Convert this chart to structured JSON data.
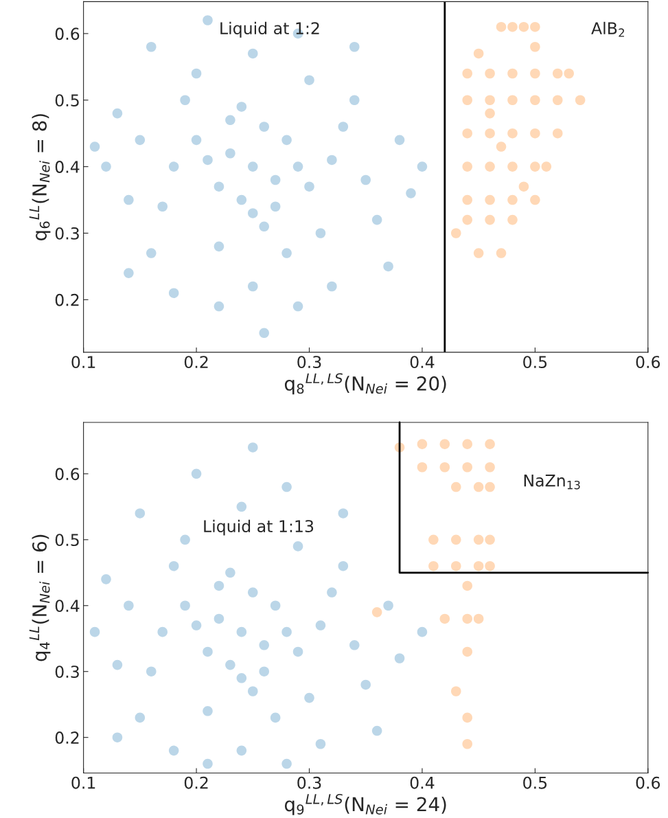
{
  "chart_data": [
    {
      "type": "scatter",
      "xlabel": "q$_{8}$$^{LL,LS}$(N$_{Nei}$ = 20)",
      "ylabel": "q$_{6}$$^{LL}$(N$_{Nei}$ = 8)",
      "xlim": [
        0.1,
        0.6
      ],
      "ylim": [
        0.121,
        0.648
      ],
      "xticks": [
        0.1,
        0.2,
        0.3,
        0.4,
        0.5,
        0.6
      ],
      "yticks": [
        0.2,
        0.3,
        0.4,
        0.5,
        0.6
      ],
      "grid": false,
      "legend": false,
      "marker": "circle",
      "annotations": [
        "Liquid at 1:2",
        "AlB$_{2}$"
      ],
      "ref_lines": [
        {
          "axis": "x",
          "value": 0.42,
          "color": "#000000"
        }
      ],
      "series": [
        {
          "color": "#1f77b4",
          "x": [
            0.25,
            0.23,
            0.27,
            0.22,
            0.28,
            0.24,
            0.26,
            0.21,
            0.29,
            0.25,
            0.23,
            0.27,
            0.2,
            0.3,
            0.24,
            0.26,
            0.18,
            0.32,
            0.17,
            0.33,
            0.19,
            0.31,
            0.22,
            0.28,
            0.2,
            0.3,
            0.15,
            0.35,
            0.14,
            0.36,
            0.25,
            0.25,
            0.16,
            0.34,
            0.13,
            0.38,
            0.12,
            0.39,
            0.21,
            0.29,
            0.22,
            0.29,
            0.14,
            0.37,
            0.16,
            0.34,
            0.26,
            0.4,
            0.11,
            0.18,
            0.32
          ],
          "values": [
            0.4,
            0.42,
            0.38,
            0.37,
            0.44,
            0.35,
            0.46,
            0.41,
            0.4,
            0.33,
            0.47,
            0.34,
            0.44,
            0.37,
            0.49,
            0.31,
            0.4,
            0.41,
            0.34,
            0.46,
            0.5,
            0.3,
            0.28,
            0.27,
            0.54,
            0.53,
            0.44,
            0.38,
            0.35,
            0.32,
            0.57,
            0.22,
            0.27,
            0.5,
            0.48,
            0.44,
            0.4,
            0.36,
            0.62,
            0.6,
            0.19,
            0.19,
            0.24,
            0.25,
            0.58,
            0.58,
            0.15,
            0.4,
            0.43,
            0.21,
            0.22
          ]
        },
        {
          "color": "#ff7f0e",
          "x": [
            0.47,
            0.48,
            0.49,
            0.5,
            0.44,
            0.46,
            0.48,
            0.5,
            0.52,
            0.53,
            0.44,
            0.46,
            0.48,
            0.5,
            0.52,
            0.54,
            0.44,
            0.46,
            0.48,
            0.5,
            0.52,
            0.44,
            0.46,
            0.48,
            0.5,
            0.51,
            0.44,
            0.46,
            0.48,
            0.5,
            0.44,
            0.46,
            0.48,
            0.45,
            0.47,
            0.45,
            0.47,
            0.46,
            0.49,
            0.43,
            0.5
          ],
          "values": [
            0.61,
            0.61,
            0.61,
            0.61,
            0.54,
            0.54,
            0.54,
            0.54,
            0.54,
            0.54,
            0.5,
            0.5,
            0.5,
            0.5,
            0.5,
            0.5,
            0.45,
            0.45,
            0.45,
            0.45,
            0.45,
            0.4,
            0.4,
            0.4,
            0.4,
            0.4,
            0.35,
            0.35,
            0.35,
            0.35,
            0.32,
            0.32,
            0.32,
            0.27,
            0.27,
            0.57,
            0.43,
            0.48,
            0.37,
            0.3,
            0.58
          ]
        }
      ]
    },
    {
      "type": "scatter",
      "xlabel": "q$_{9}$$^{LL,LS}$(N$_{Nei}$ = 24)",
      "ylabel": "q$_{4}$$^{LL}$(N$_{Nei}$ = 6)",
      "xlim": [
        0.1,
        0.6
      ],
      "ylim": [
        0.146,
        0.678
      ],
      "xticks": [
        0.1,
        0.2,
        0.3,
        0.4,
        0.5,
        0.6
      ],
      "yticks": [
        0.2,
        0.3,
        0.4,
        0.5,
        0.6
      ],
      "grid": false,
      "legend": false,
      "marker": "circle",
      "annotations": [
        "Liquid at 1:13",
        "NaZn$_{13}$"
      ],
      "series": [
        {
          "color": "#1f77b4",
          "x": [
            0.24,
            0.22,
            0.26,
            0.21,
            0.27,
            0.23,
            0.25,
            0.2,
            0.28,
            0.24,
            0.22,
            0.26,
            0.19,
            0.29,
            0.23,
            0.25,
            0.17,
            0.31,
            0.16,
            0.32,
            0.18,
            0.3,
            0.21,
            0.27,
            0.19,
            0.29,
            0.14,
            0.34,
            0.13,
            0.35,
            0.24,
            0.24,
            0.15,
            0.33,
            0.12,
            0.37,
            0.11,
            0.38,
            0.2,
            0.28,
            0.21,
            0.28,
            0.13,
            0.36,
            0.15,
            0.33,
            0.25,
            0.4,
            0.18,
            0.31
          ],
          "values": [
            0.36,
            0.38,
            0.34,
            0.33,
            0.4,
            0.31,
            0.42,
            0.37,
            0.36,
            0.29,
            0.43,
            0.3,
            0.4,
            0.33,
            0.45,
            0.27,
            0.36,
            0.37,
            0.3,
            0.42,
            0.46,
            0.26,
            0.24,
            0.23,
            0.5,
            0.49,
            0.4,
            0.34,
            0.31,
            0.28,
            0.55,
            0.18,
            0.23,
            0.46,
            0.44,
            0.4,
            0.36,
            0.32,
            0.6,
            0.58,
            0.16,
            0.16,
            0.2,
            0.21,
            0.54,
            0.54,
            0.64,
            0.36,
            0.18,
            0.19
          ]
        },
        {
          "color": "#ff7f0e",
          "x": [
            0.4,
            0.42,
            0.44,
            0.46,
            0.4,
            0.42,
            0.44,
            0.46,
            0.43,
            0.45,
            0.46,
            0.41,
            0.43,
            0.45,
            0.46,
            0.41,
            0.43,
            0.45,
            0.46,
            0.42,
            0.44,
            0.45,
            0.44,
            0.43,
            0.44,
            0.44,
            0.36,
            0.38,
            0.44
          ],
          "values": [
            0.645,
            0.645,
            0.645,
            0.645,
            0.61,
            0.61,
            0.61,
            0.61,
            0.58,
            0.58,
            0.58,
            0.5,
            0.5,
            0.5,
            0.5,
            0.46,
            0.46,
            0.46,
            0.46,
            0.38,
            0.38,
            0.38,
            0.33,
            0.27,
            0.23,
            0.19,
            0.39,
            0.64,
            0.43
          ]
        },
        {
          "type": "line",
          "marker": "none",
          "color": "#000000",
          "x": [
            0.38,
            0.38,
            0.6
          ],
          "values": [
            0.678,
            0.45,
            0.45
          ]
        }
      ]
    }
  ]
}
